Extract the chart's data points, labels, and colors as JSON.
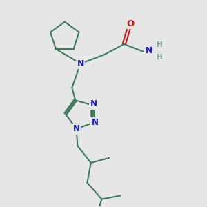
{
  "bg_color": "#e6e6e6",
  "bond_color": "#3a7a5a",
  "bond_width": 1.5,
  "atom_colors": {
    "N": "#1a1acc",
    "O": "#cc1a1a",
    "C": "#3a7a5a",
    "H": "#7aaa90"
  }
}
